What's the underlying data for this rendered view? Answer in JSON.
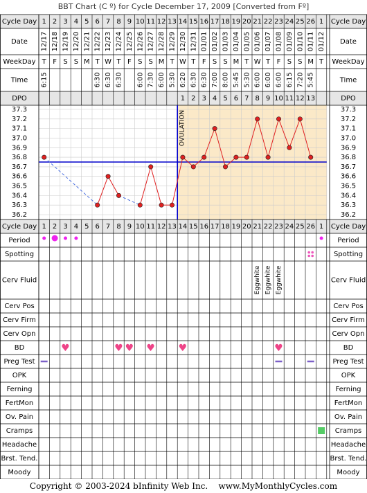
{
  "title": "BBT Chart (C º) for Cycle December 17, 2009  [Converted from Fº]",
  "footer": "Copyright © 2003-2024 bInfinity Web Inc.    www.MyMonthlyCycles.com",
  "row_labels": {
    "cycle_day": "Cycle Day",
    "date": "Date",
    "weekday": "WeekDay",
    "time": "Time",
    "dpo": "DPO",
    "period": "Period",
    "spotting": "Spotting",
    "cerv_fluid": "Cerv Fluid",
    "cerv_pos": "Cerv Pos",
    "cerv_firm": "Cerv Firm",
    "cerv_opn": "Cerv Opn",
    "bd": "BD",
    "preg_test": "Preg Test",
    "opk": "OPK",
    "ferning": "Ferning",
    "fertmon": "FertMon",
    "ov_pain": "Ov. Pain",
    "cramps": "Cramps",
    "headache": "Headache",
    "brst_tend": "Brst. Tend.",
    "moody": "Moody"
  },
  "days": [
    {
      "cd": "1",
      "date": "12/17",
      "wd": "T",
      "time": "6:15",
      "dpo": ""
    },
    {
      "cd": "2",
      "date": "12/18",
      "wd": "F",
      "time": "",
      "dpo": ""
    },
    {
      "cd": "3",
      "date": "12/19",
      "wd": "S",
      "time": "",
      "dpo": ""
    },
    {
      "cd": "4",
      "date": "12/20",
      "wd": "S",
      "time": "",
      "dpo": ""
    },
    {
      "cd": "5",
      "date": "12/21",
      "wd": "M",
      "time": "",
      "dpo": ""
    },
    {
      "cd": "6",
      "date": "12/22",
      "wd": "T",
      "time": "6:30",
      "dpo": ""
    },
    {
      "cd": "7",
      "date": "12/23",
      "wd": "W",
      "time": "6:30",
      "dpo": ""
    },
    {
      "cd": "8",
      "date": "12/24",
      "wd": "T",
      "time": "6:30",
      "dpo": ""
    },
    {
      "cd": "9",
      "date": "12/25",
      "wd": "F",
      "time": "",
      "dpo": ""
    },
    {
      "cd": "10",
      "date": "12/26",
      "wd": "S",
      "time": "6:00",
      "dpo": ""
    },
    {
      "cd": "11",
      "date": "12/27",
      "wd": "S",
      "time": "7:30",
      "dpo": ""
    },
    {
      "cd": "12",
      "date": "12/28",
      "wd": "M",
      "time": "6:00",
      "dpo": ""
    },
    {
      "cd": "13",
      "date": "12/29",
      "wd": "T",
      "time": "5:30",
      "dpo": ""
    },
    {
      "cd": "14",
      "date": "12/30",
      "wd": "W",
      "time": "6:20",
      "dpo": "1"
    },
    {
      "cd": "15",
      "date": "12/31",
      "wd": "T",
      "time": "6:30",
      "dpo": "2"
    },
    {
      "cd": "16",
      "date": "01/01",
      "wd": "F",
      "time": "6:30",
      "dpo": "3"
    },
    {
      "cd": "17",
      "date": "01/02",
      "wd": "S",
      "time": "7:00",
      "dpo": "4"
    },
    {
      "cd": "18",
      "date": "01/03",
      "wd": "S",
      "time": "8:00",
      "dpo": "5"
    },
    {
      "cd": "19",
      "date": "01/04",
      "wd": "M",
      "time": "5:45",
      "dpo": "6"
    },
    {
      "cd": "20",
      "date": "01/05",
      "wd": "T",
      "time": "5:30",
      "dpo": "7"
    },
    {
      "cd": "21",
      "date": "01/06",
      "wd": "W",
      "time": "6:00",
      "dpo": "8"
    },
    {
      "cd": "22",
      "date": "01/07",
      "wd": "T",
      "time": "6:00",
      "dpo": "9"
    },
    {
      "cd": "23",
      "date": "01/08",
      "wd": "F",
      "time": "6:00",
      "dpo": "10"
    },
    {
      "cd": "24",
      "date": "01/09",
      "wd": "S",
      "time": "6:15",
      "dpo": "11"
    },
    {
      "cd": "25",
      "date": "01/10",
      "wd": "S",
      "time": "7:20",
      "dpo": "12"
    },
    {
      "cd": "26",
      "date": "01/11",
      "wd": "M",
      "time": "5:45",
      "dpo": "13"
    },
    {
      "cd": "1",
      "date": "01/12",
      "wd": "T",
      "time": "",
      "dpo": ""
    }
  ],
  "chart_data": {
    "type": "line",
    "y_ticks": [
      37.3,
      37.2,
      37.1,
      37.0,
      36.9,
      36.8,
      36.7,
      36.6,
      36.5,
      36.4,
      36.3,
      36.2
    ],
    "ylim": [
      36.2,
      37.3
    ],
    "coverline": 36.75,
    "ovulation_after_day": 13,
    "ovulation_label": "OVULATION",
    "temps": [
      36.8,
      null,
      null,
      null,
      null,
      36.3,
      36.6,
      36.4,
      null,
      36.3,
      36.7,
      36.3,
      36.3,
      36.8,
      36.7,
      36.8,
      37.1,
      36.7,
      36.8,
      36.8,
      37.2,
      36.8,
      37.2,
      36.9,
      37.2,
      36.8,
      null
    ],
    "colors": {
      "line": "#e02020",
      "dashed": "#4a6fe0",
      "coverline": "#0000cc",
      "luteal_bg": "#fbe9c8",
      "grid": "#cccccc",
      "header_bg": "#e6e6e6"
    }
  },
  "markers": {
    "period": [
      {
        "day": 1,
        "size": "small"
      },
      {
        "day": 2,
        "size": "large"
      },
      {
        "day": 3,
        "size": "small"
      },
      {
        "day": 4,
        "size": "small"
      },
      {
        "day": 27,
        "size": "small"
      }
    ],
    "spotting": [
      26
    ],
    "cerv_fluid": [
      {
        "day": 21,
        "text": "Eggwhite"
      },
      {
        "day": 22,
        "text": "Eggwhite"
      },
      {
        "day": 23,
        "text": "Eggwhite"
      }
    ],
    "bd": [
      3,
      8,
      9,
      11,
      14,
      23
    ],
    "preg_test": [
      1,
      23,
      26
    ],
    "cramps": [
      27
    ]
  },
  "symbols": {
    "heart": "♥"
  }
}
